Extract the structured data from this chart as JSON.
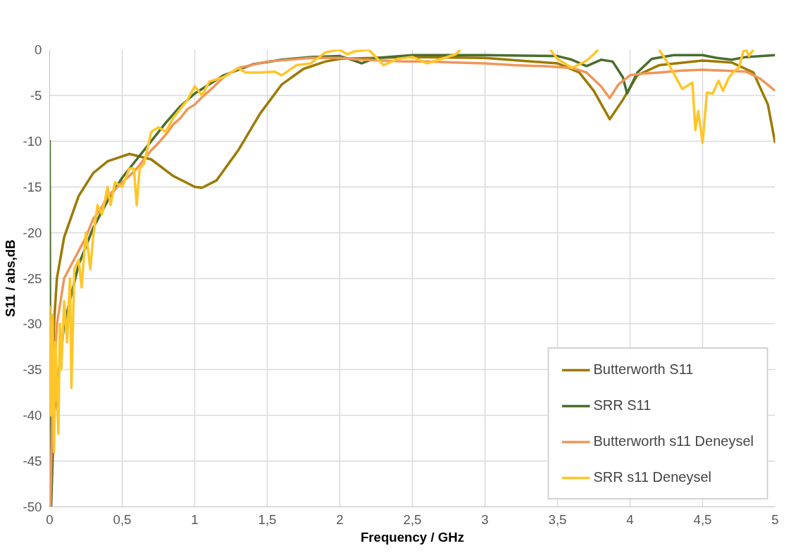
{
  "chart_data": {
    "type": "line",
    "xlabel": "Frequency / GHz",
    "ylabel": "S11 / abs,dB",
    "xlim": [
      0,
      5
    ],
    "ylim": [
      -50,
      0
    ],
    "xticks": [
      0,
      {
        "value": 0.5,
        "label": "0,5"
      },
      1,
      {
        "value": 1.5,
        "label": "1,5"
      },
      2,
      {
        "value": 2.5,
        "label": "2,5"
      },
      3,
      {
        "value": 3.5,
        "label": "3,5"
      },
      4,
      {
        "value": 4.5,
        "label": "4,5"
      },
      5
    ],
    "yticks": [
      -50,
      -45,
      -40,
      -35,
      -30,
      -25,
      -20,
      -15,
      -10,
      -5,
      0
    ],
    "grid": true,
    "legend": "bottom right",
    "line_style": "solid",
    "marker": "none",
    "series": [
      {
        "name": "Butterworth S11",
        "color": "#9c7a00",
        "x": [
          0.005,
          0.03,
          0.05,
          0.1,
          0.2,
          0.3,
          0.4,
          0.55,
          0.7,
          0.85,
          1.0,
          1.05,
          1.15,
          1.3,
          1.45,
          1.6,
          1.75,
          1.9,
          2.0,
          2.5,
          3.0,
          3.5,
          3.65,
          3.75,
          3.86,
          3.95,
          4.05,
          4.2,
          4.5,
          4.7,
          4.85,
          4.95,
          5.0
        ],
        "values": [
          -50,
          -30,
          -25,
          -20.5,
          -16,
          -13.5,
          -12.2,
          -11.4,
          -12,
          -13.8,
          -15,
          -15.1,
          -14.3,
          -11,
          -7,
          -3.8,
          -2.1,
          -1.3,
          -1.0,
          -0.8,
          -0.9,
          -1.5,
          -2.5,
          -4.5,
          -7.6,
          -5.5,
          -2.8,
          -1.7,
          -1.2,
          -1.4,
          -2.5,
          -6,
          -10.2
        ]
      },
      {
        "name": "SRR S11",
        "color": "#4a6e2e",
        "x": [
          0,
          0.005,
          0.01,
          0.03,
          0.1,
          0.2,
          0.3,
          0.4,
          0.5,
          0.6,
          0.7,
          0.8,
          0.9,
          1.0,
          1.2,
          1.4,
          1.6,
          1.8,
          2.0,
          2.1,
          2.15,
          2.25,
          2.5,
          3.0,
          3.5,
          3.6,
          3.7,
          3.8,
          3.88,
          3.95,
          3.98,
          4.05,
          4.15,
          4.3,
          4.5,
          4.6,
          4.7,
          4.8,
          5.0
        ],
        "values": [
          -9.9,
          -45,
          -50,
          -40,
          -30,
          -23.5,
          -19.5,
          -16.5,
          -14,
          -12,
          -10,
          -8,
          -6.2,
          -4.8,
          -2.8,
          -1.6,
          -1.1,
          -0.8,
          -0.7,
          -1.2,
          -1.5,
          -0.9,
          -0.6,
          -0.6,
          -0.7,
          -1.1,
          -1.8,
          -1.1,
          -1.3,
          -3,
          -4.8,
          -2.5,
          -1,
          -0.6,
          -0.6,
          -0.9,
          -1.1,
          -0.8,
          -0.6
        ]
      },
      {
        "name": "Butterworth s11 Deneysel",
        "color": "#f0965a",
        "x": [
          0.005,
          0.02,
          0.05,
          0.1,
          0.15,
          0.2,
          0.25,
          0.3,
          0.35,
          0.4,
          0.45,
          0.5,
          0.55,
          0.6,
          0.65,
          0.7,
          0.75,
          0.8,
          0.85,
          0.9,
          0.95,
          1.0,
          1.05,
          1.1,
          1.2,
          1.3,
          1.5,
          1.8,
          2.0,
          2.15,
          2.3,
          2.45,
          2.6,
          2.8,
          3.0,
          3.2,
          3.4,
          3.6,
          3.7,
          3.8,
          3.86,
          3.92,
          4.0,
          4.1,
          4.2,
          4.35,
          4.5,
          4.65,
          4.8,
          4.9,
          5.0
        ],
        "values": [
          -50,
          -38,
          -30,
          -25,
          -23.5,
          -22,
          -20.5,
          -18.5,
          -17.5,
          -16,
          -15.3,
          -14.5,
          -13.8,
          -13,
          -12,
          -11,
          -10.2,
          -9.3,
          -8.2,
          -7.5,
          -6.5,
          -6,
          -5.2,
          -4.5,
          -3,
          -2,
          -1.3,
          -0.9,
          -0.9,
          -1.1,
          -1.2,
          -1.3,
          -1.3,
          -1.4,
          -1.5,
          -1.7,
          -1.8,
          -2.0,
          -2.5,
          -4,
          -5.3,
          -3.8,
          -2.8,
          -2.6,
          -2.5,
          -2.3,
          -2.2,
          -2.3,
          -2.4,
          -3.2,
          -4.5
        ]
      },
      {
        "name": "SRR s11 Deneysel",
        "color": "#ffc629",
        "x": [
          0,
          0.01,
          0.02,
          0.03,
          0.04,
          0.06,
          0.07,
          0.08,
          0.1,
          0.12,
          0.14,
          0.15,
          0.17,
          0.2,
          0.22,
          0.25,
          0.28,
          0.3,
          0.33,
          0.36,
          0.4,
          0.42,
          0.45,
          0.5,
          0.55,
          0.58,
          0.6,
          0.62,
          0.65,
          0.7,
          0.75,
          0.8,
          0.85,
          0.9,
          0.95,
          1.0,
          1.05,
          1.1,
          1.2,
          1.3,
          1.35,
          1.45,
          1.55,
          1.6,
          1.7,
          1.8,
          1.9,
          2.0,
          2.05,
          2.1,
          2.2,
          2.3,
          2.4,
          2.5,
          2.6,
          2.7,
          2.8,
          2.83,
          3.1,
          3.45,
          3.5,
          3.6,
          3.7,
          3.75,
          3.78,
          4.0,
          4.2,
          4.27,
          4.36,
          4.43,
          4.45,
          4.47,
          4.5,
          4.53,
          4.57,
          4.61,
          4.64,
          4.68,
          4.72,
          4.75,
          4.78,
          4.8,
          4.82,
          4.85
        ],
        "values": [
          -28,
          -40,
          -29,
          -44,
          -32,
          -42,
          -30,
          -35,
          -27.5,
          -32,
          -25,
          -37,
          -24,
          -23,
          -26,
          -20,
          -24,
          -20.5,
          -17,
          -18,
          -15,
          -17,
          -14.5,
          -15,
          -13,
          -13,
          -17,
          -13,
          -12.5,
          -9,
          -8.5,
          -9,
          -7.5,
          -6.5,
          -5.5,
          -4,
          -5,
          -3.5,
          -3,
          -2,
          -2.5,
          -2.5,
          -2.4,
          -2.8,
          -1.7,
          -1.5,
          -0.3,
          0,
          -0.5,
          -0.2,
          0,
          -1.7,
          -1.0,
          -0.8,
          -1.5,
          -1.0,
          -0.5,
          0,
          null,
          0,
          -1.0,
          -2,
          -1.2,
          -0.5,
          0,
          null,
          0,
          -1.7,
          -4.3,
          -3.6,
          -8.8,
          -6.7,
          -10.2,
          -4.7,
          -4.8,
          -3.4,
          -4.5,
          -3.1,
          -2.3,
          -2.0,
          -0.2,
          0,
          -0.7,
          0
        ]
      }
    ]
  }
}
